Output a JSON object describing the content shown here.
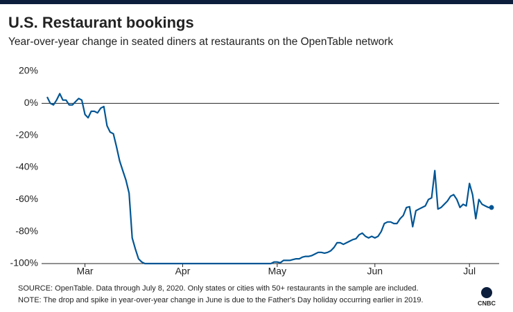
{
  "chart_data": {
    "type": "line",
    "title": "U.S. Restaurant bookings",
    "subtitle": "Year-over-year change in seated diners at restaurants on the OpenTable network",
    "notes": [
      "SOURCE: OpenTable. Data through July 8, 2020. Only states or cities with 50+ restaurants in the sample are included.",
      "NOTE: The drop and spike in year-over-year change in June is due to the Father's Day holiday occurring earlier in 2019."
    ],
    "logo": "CNBC",
    "categories": [
      null,
      null,
      null,
      null,
      null,
      null,
      null,
      null,
      null,
      null,
      null,
      null,
      "Mar",
      null,
      null,
      null,
      null,
      null,
      null,
      null,
      null,
      null,
      null,
      null,
      null,
      null,
      null,
      null,
      null,
      null,
      null,
      null,
      null,
      null,
      null,
      null,
      null,
      null,
      null,
      null,
      null,
      null,
      null,
      "Apr",
      null,
      null,
      null,
      null,
      null,
      null,
      null,
      null,
      null,
      null,
      null,
      null,
      null,
      null,
      null,
      null,
      null,
      null,
      null,
      null,
      null,
      null,
      null,
      null,
      null,
      null,
      null,
      null,
      null,
      "May",
      null,
      null,
      null,
      null,
      null,
      null,
      null,
      null,
      null,
      null,
      null,
      null,
      null,
      null,
      null,
      null,
      null,
      null,
      null,
      null,
      null,
      null,
      null,
      null,
      null,
      null,
      null,
      null,
      null,
      null,
      "Jun",
      null,
      null,
      null,
      null,
      null,
      null,
      null,
      null,
      null,
      null,
      null,
      null,
      null,
      null,
      null,
      null,
      null,
      null,
      null,
      null,
      null,
      null,
      null,
      null,
      null,
      null,
      null,
      null,
      null,
      "Jul",
      null,
      null,
      null,
      null,
      null,
      null,
      null
    ],
    "series": [
      {
        "name": "Seated diners",
        "color": "#005594",
        "values": [
          4,
          0,
          -1,
          2,
          6,
          2,
          2,
          -1,
          -1,
          1,
          3,
          2,
          -7,
          -9,
          -5,
          -5,
          -6,
          -3,
          -2,
          -14,
          -18,
          -19,
          -27,
          -36,
          -42,
          -48,
          -56,
          -84,
          -91,
          -97,
          -99,
          -100,
          -100,
          -100,
          -100,
          -100,
          -100,
          -100,
          -100,
          -100,
          -100,
          -100,
          -100,
          -100,
          -100,
          -100,
          -100,
          -100,
          -100,
          -100,
          -100,
          -100,
          -100,
          -100,
          -100,
          -100,
          -100,
          -100,
          -100,
          -100,
          -100,
          -100,
          -100,
          -100,
          -100,
          -100,
          -100,
          -100,
          -100,
          -100,
          -100,
          -100,
          -99,
          -99,
          -99.5,
          -98,
          -98,
          -98,
          -97.5,
          -97,
          -97,
          -96,
          -95.5,
          -95.5,
          -95,
          -94,
          -93,
          -93,
          -93.5,
          -93,
          -92,
          -90,
          -87,
          -87,
          -88,
          -87,
          -86,
          -85,
          -84.5,
          -82,
          -81,
          -83,
          -84,
          -83,
          -84,
          -83,
          -80,
          -75,
          -74,
          -74,
          -75,
          -75,
          -72,
          -70,
          -65,
          -64.5,
          -77,
          -67,
          -66,
          -65,
          -64,
          -60,
          -59,
          -42,
          -66,
          -65,
          -63,
          -61,
          -58,
          -57,
          -60,
          -65,
          -63,
          -64,
          -50,
          -57,
          -72,
          -60,
          -63,
          -64,
          -65,
          -65
        ]
      }
    ],
    "ylim": [
      -100,
      20
    ],
    "yticks": [
      {
        "value": 20,
        "label": "20%"
      },
      {
        "value": 0,
        "label": "0%"
      },
      {
        "value": -20,
        "label": "-20%"
      },
      {
        "value": -40,
        "label": "-40%"
      },
      {
        "value": -60,
        "label": "-60%"
      },
      {
        "value": -80,
        "label": "-80%"
      },
      {
        "value": -100,
        "label": "-100%"
      }
    ],
    "grid": false
  }
}
